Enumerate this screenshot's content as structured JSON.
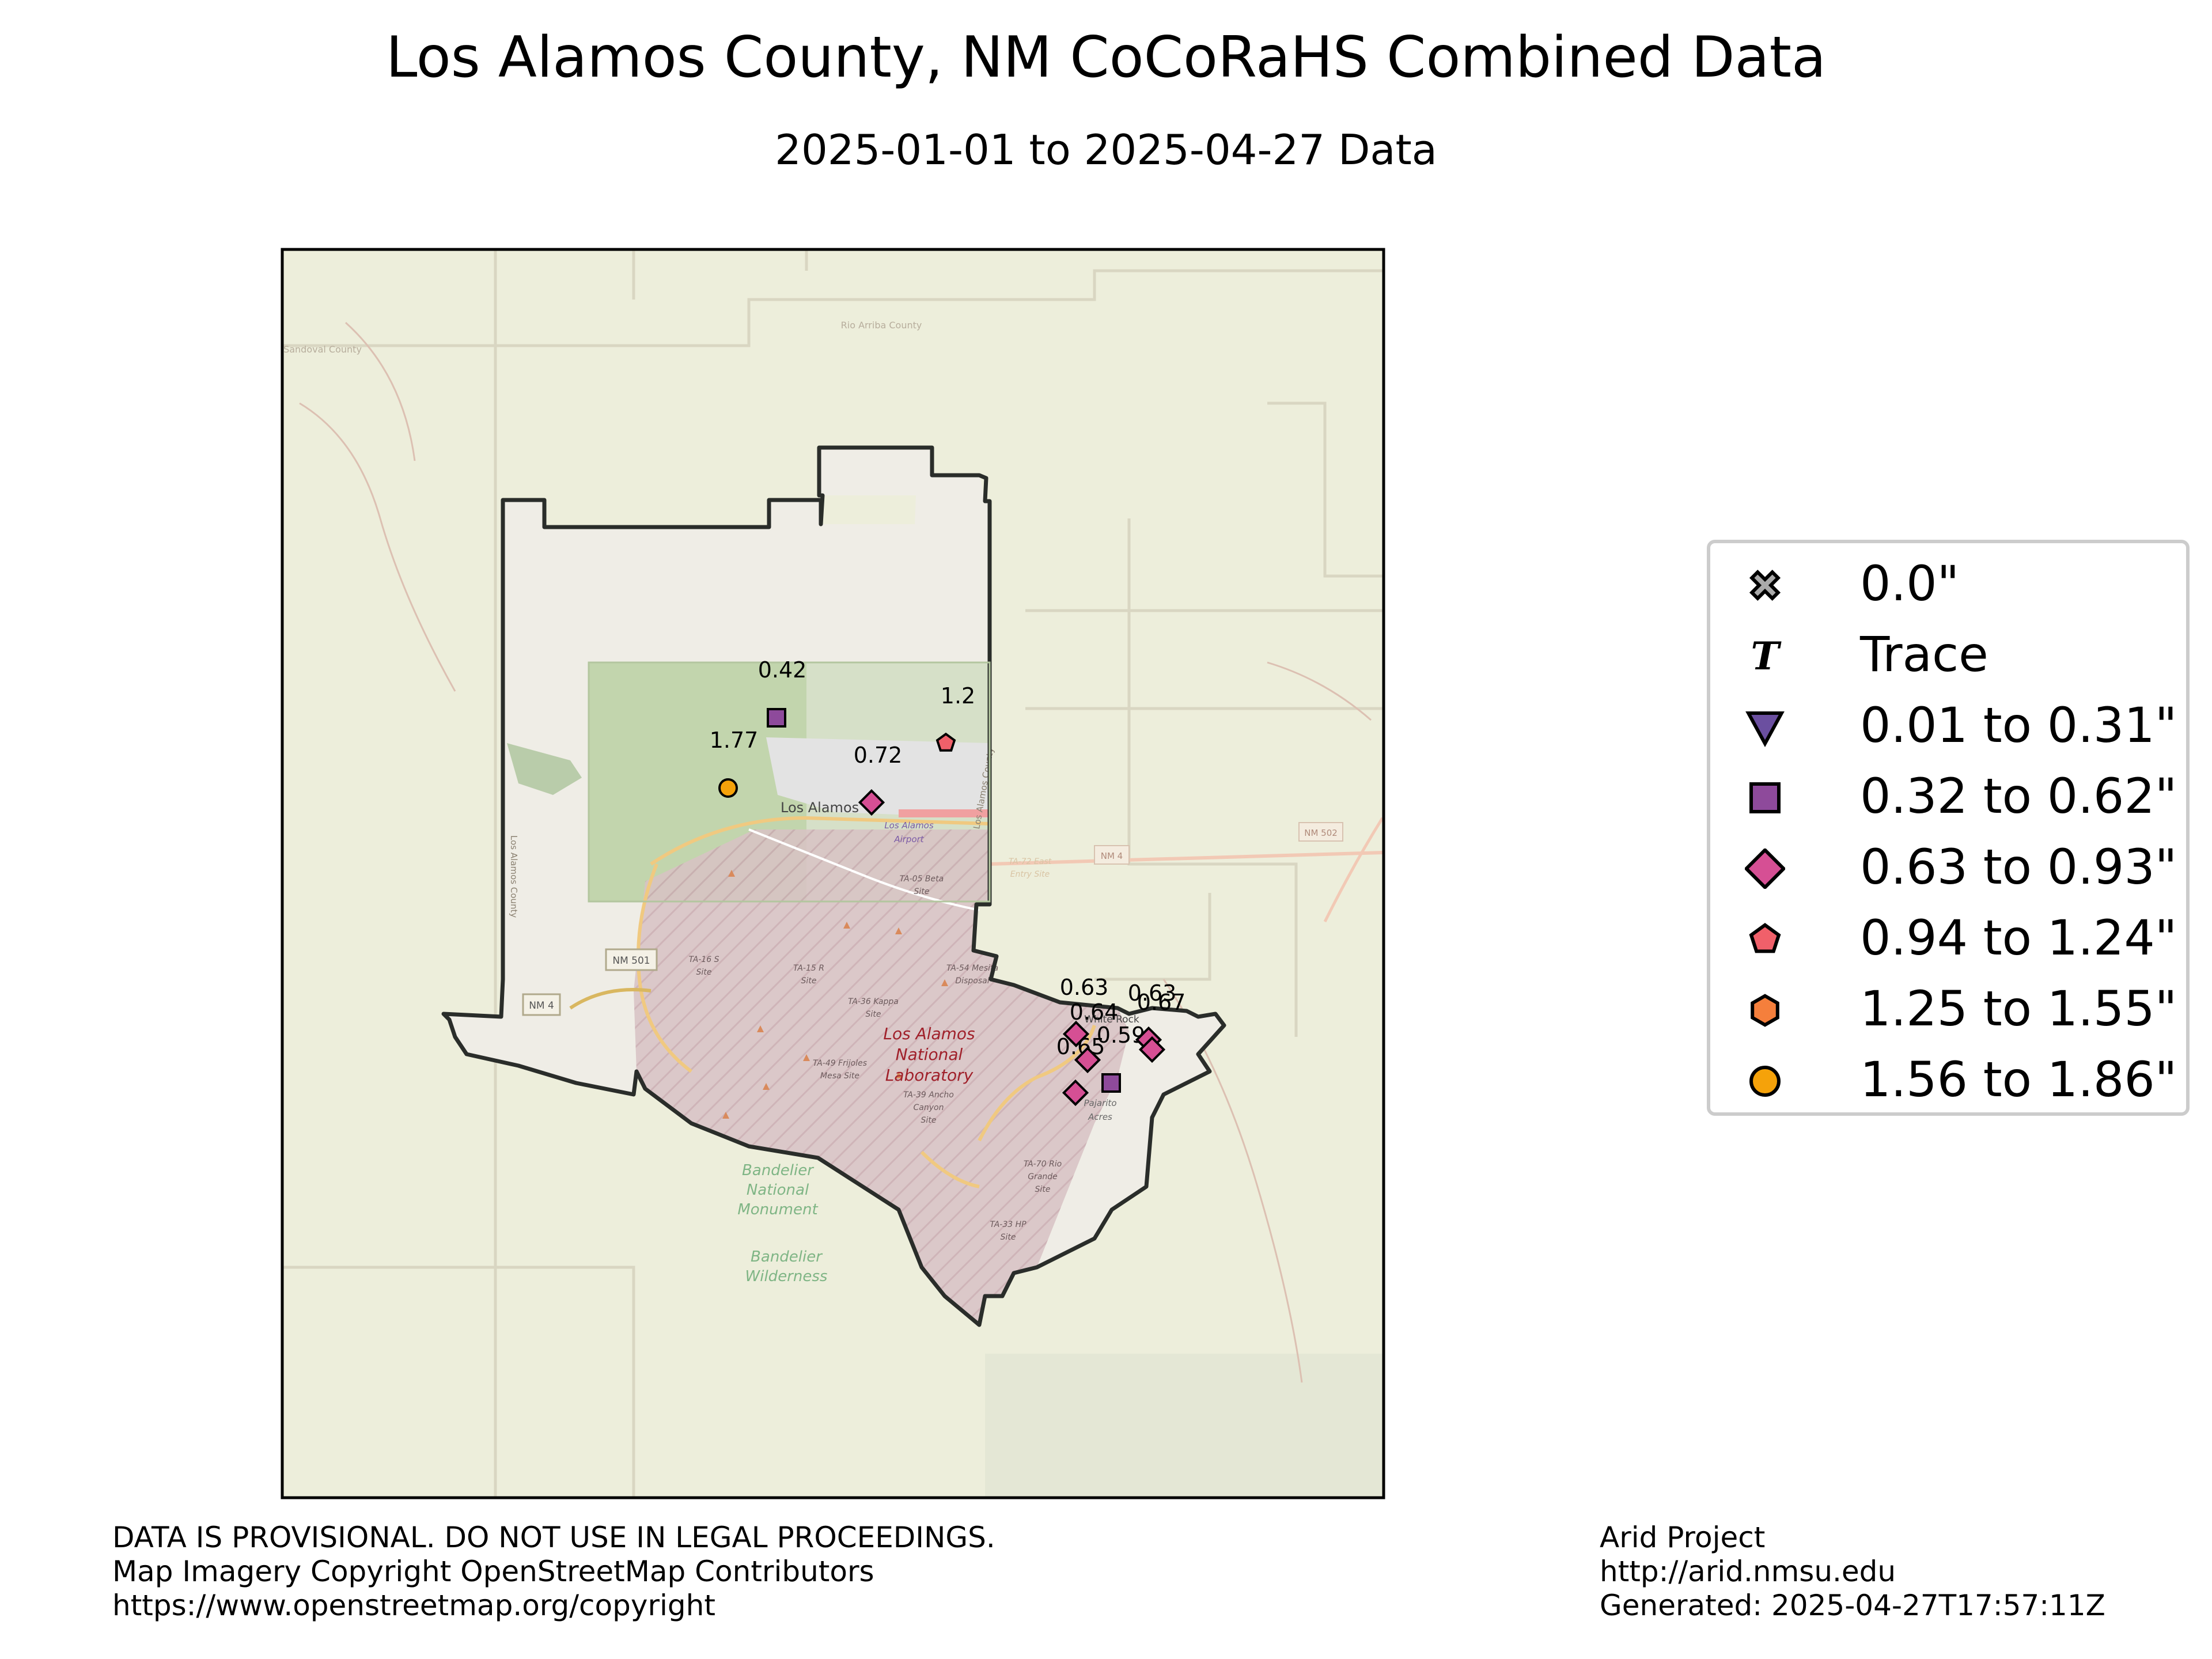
{
  "header": {
    "title": "Los Alamos County, NM CoCoRaHS Combined Data",
    "subtitle": "2025-01-01 to 2025-04-27 Data"
  },
  "map": {
    "basemap_labels": {
      "town": "Los Alamos",
      "lab_line1": "Los Alamos",
      "lab_line2": "National",
      "lab_line3": "Laboratory",
      "monument_line1": "Bandelier",
      "monument_line2": "National",
      "monument_line3": "Monument",
      "wilderness_line1": "Bandelier",
      "wilderness_line2": "Wilderness",
      "road_nm501": "NM 501",
      "road_nm4_west": "NM 4",
      "road_nm4_east": "NM 4",
      "road_nm502": "NM 502",
      "county_label_west": "Los Alamos County",
      "county_label_east": "Los Alamos County",
      "rio_arriba": "Rio Arriba County",
      "sandoval": "Sandoval County",
      "airport_line1": "Los Alamos",
      "airport_line2": "Airport",
      "white_rock": "White Rock",
      "pajarito_line1": "Pajarito",
      "pajarito_line2": "Acres",
      "ta16_line1": "TA-16 S",
      "ta16_line2": "Site",
      "ta15_line1": "TA-15 R",
      "ta15_line2": "Site",
      "ta36_line1": "TA-36 Kappa",
      "ta36_line2": "Site",
      "ta54_line1": "TA-54 Mesita",
      "ta54_line2": "Disposal",
      "ta49_line1": "TA-49 Frijoles",
      "ta49_line2": "Mesa Site",
      "ta39_line1": "TA-39 Ancho",
      "ta39_line2": "Canyon",
      "ta39_line3": "Site",
      "ta70_line1": "TA-70 Rio",
      "ta70_line2": "Grande",
      "ta70_line3": "Site",
      "ta33_line1": "TA-33 HP",
      "ta33_line2": "Site",
      "ta05_line1": "TA-05 Beta",
      "ta05_line2": "Site",
      "ta72_line1": "TA-72 East",
      "ta72_line2": "Entry Site"
    },
    "stations": [
      {
        "value": "0.42",
        "category": "0.32 to 0.62\"",
        "marker": "square",
        "color": "#8e4a9b"
      },
      {
        "value": "1.2",
        "category": "0.94 to 1.24\"",
        "marker": "pentagon",
        "color": "#f0606a"
      },
      {
        "value": "1.77",
        "category": "1.56 to 1.86\"",
        "marker": "circle",
        "color": "#f5a20a"
      },
      {
        "value": "0.72",
        "category": "0.63 to 0.93\"",
        "marker": "diamond",
        "color": "#d64f94"
      },
      {
        "value": "0.63",
        "category": "0.63 to 0.93\"",
        "marker": "diamond",
        "color": "#d64f94"
      },
      {
        "value": "0.63",
        "category": "0.63 to 0.93\"",
        "marker": "diamond",
        "color": "#d64f94"
      },
      {
        "value": "0.64",
        "category": "0.63 to 0.93\"",
        "marker": "diamond",
        "color": "#d64f94"
      },
      {
        "value": "0.67",
        "category": "0.63 to 0.93\"",
        "marker": "diamond",
        "color": "#d64f94"
      },
      {
        "value": "0.59",
        "category": "0.32 to 0.62\"",
        "marker": "square",
        "color": "#8e4a9b"
      },
      {
        "value": "0.65",
        "category": "0.63 to 0.93\"",
        "marker": "diamond",
        "color": "#d64f94"
      }
    ]
  },
  "legend": {
    "items": [
      {
        "label": "0.0\"",
        "marker": "x",
        "color": "#aaaaaa"
      },
      {
        "label": "Trace",
        "marker": "T",
        "color": "#000000"
      },
      {
        "label": "0.01 to 0.31\"",
        "marker": "triangle-down",
        "color": "#6b4fa0"
      },
      {
        "label": "0.32 to 0.62\"",
        "marker": "square",
        "color": "#8e4a9b"
      },
      {
        "label": "0.63 to 0.93\"",
        "marker": "diamond",
        "color": "#d64f94"
      },
      {
        "label": "0.94 to 1.24\"",
        "marker": "pentagon",
        "color": "#f0606a"
      },
      {
        "label": "1.25 to 1.55\"",
        "marker": "hexagon",
        "color": "#f57f3c"
      },
      {
        "label": "1.56 to 1.86\"",
        "marker": "circle",
        "color": "#f5a20a"
      }
    ]
  },
  "footer": {
    "left_line1": "DATA IS PROVISIONAL. DO NOT USE IN LEGAL PROCEEDINGS.",
    "left_line2": "Map Imagery Copyright OpenStreetMap Contributors",
    "left_line3": "https://www.openstreetmap.org/copyright",
    "right_line1": "Arid Project",
    "right_line2": "http://arid.nmsu.edu",
    "right_line3": "Generated: 2025-04-27T17:57:11Z"
  }
}
